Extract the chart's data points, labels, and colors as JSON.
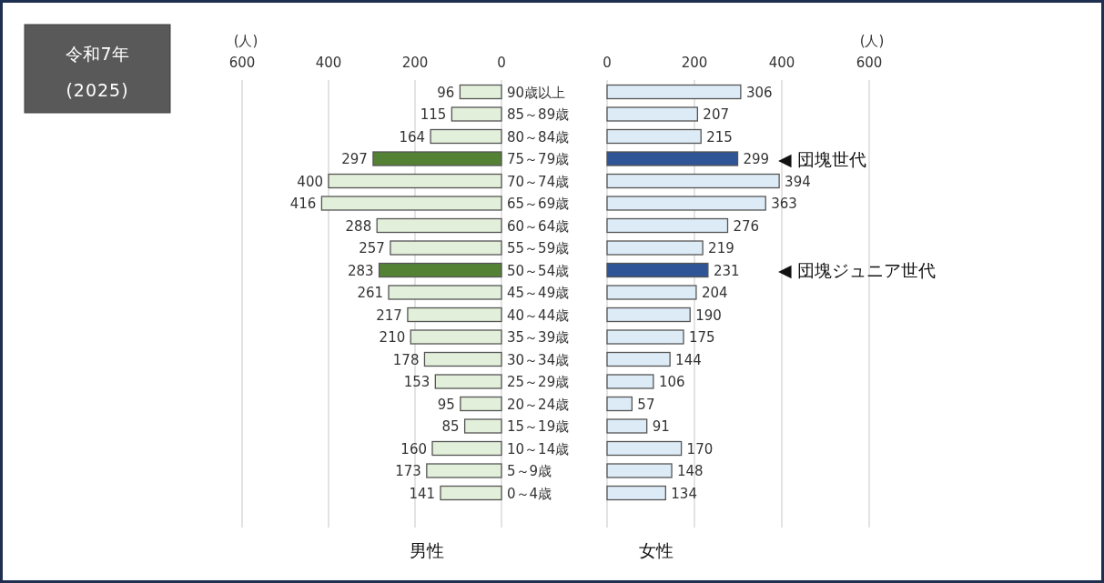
{
  "chart_data": [
    {
      "type": "bar",
      "orientation": "horizontal",
      "title": "令和7年",
      "subtitle": "(2025)",
      "xlabel": "男性",
      "annotations": [
        "(人)"
      ],
      "categories": [
        "90歳以上",
        "85～89歳",
        "80～84歳",
        "75～79歳",
        "70～74歳",
        "65～69歳",
        "60～64歳",
        "55～59歳",
        "50～54歳",
        "45～49歳",
        "40～44歳",
        "35～39歳",
        "30～34歳",
        "25～29歳",
        "20～24歳",
        "15～19歳",
        "10～14歳",
        "5～9歳",
        "0～4歳"
      ],
      "values": [
        96,
        115,
        164,
        297,
        400,
        416,
        288,
        257,
        283,
        261,
        217,
        210,
        178,
        153,
        95,
        85,
        160,
        173,
        141
      ],
      "colors": [
        "#e2efda",
        "#e2efda",
        "#e2efda",
        "#548235",
        "#e2efda",
        "#e2efda",
        "#e2efda",
        "#e2efda",
        "#548235",
        "#e2efda",
        "#e2efda",
        "#e2efda",
        "#e2efda",
        "#e2efda",
        "#e2efda",
        "#e2efda",
        "#e2efda",
        "#e2efda",
        "#e2efda"
      ],
      "xlim": [
        600,
        0
      ],
      "xticks": [
        600,
        400,
        200,
        0
      ],
      "grid": "x",
      "data_labels": true
    },
    {
      "type": "bar",
      "orientation": "horizontal",
      "xlabel": "女性",
      "annotations": [
        "(人)",
        "◀ 団塊世代",
        "◀ 団塊ジュニア世代"
      ],
      "categories": [
        null,
        null,
        null,
        null,
        null,
        null,
        null,
        null,
        null,
        null,
        null,
        null,
        null,
        null,
        null,
        null,
        null,
        null,
        null
      ],
      "values": [
        306,
        207,
        215,
        299,
        394,
        363,
        276,
        219,
        231,
        204,
        190,
        175,
        144,
        106,
        57,
        91,
        170,
        148,
        134
      ],
      "colors": [
        "#ddebf7",
        "#ddebf7",
        "#ddebf7",
        "#2f5597",
        "#ddebf7",
        "#ddebf7",
        "#ddebf7",
        "#ddebf7",
        "#2f5597",
        "#ddebf7",
        "#ddebf7",
        "#ddebf7",
        "#ddebf7",
        "#ddebf7",
        "#ddebf7",
        "#ddebf7",
        "#ddebf7",
        "#ddebf7",
        "#ddebf7"
      ],
      "xlim": [
        0,
        600
      ],
      "xticks": [
        0,
        200,
        400,
        600
      ],
      "grid": "x",
      "data_labels": true
    }
  ]
}
